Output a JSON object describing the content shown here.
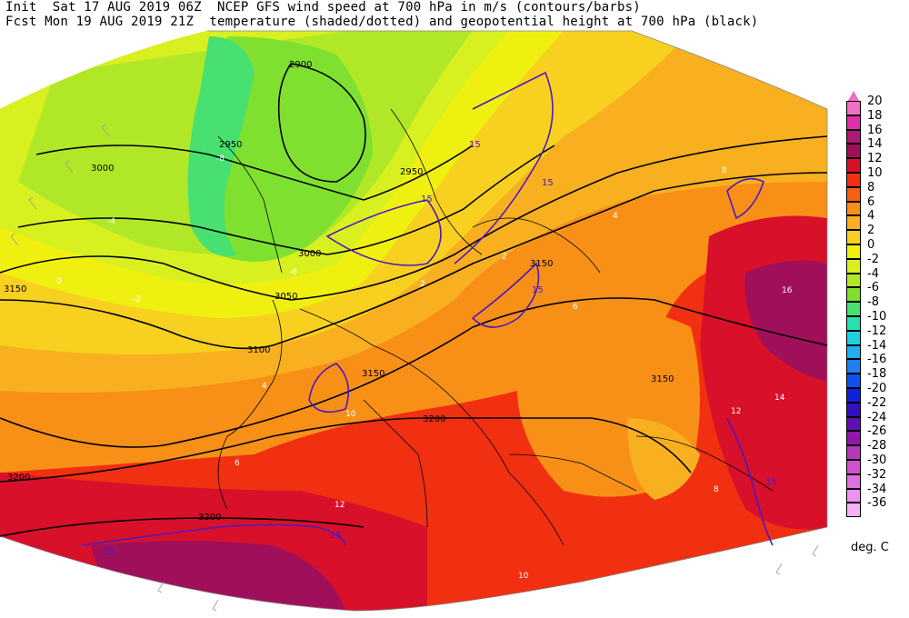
{
  "header": {
    "line1": "Init  Sat 17 AUG 2019 06Z  NCEP GFS wind speed at 700 hPa in m/s (contours/barbs)",
    "line2": "Fcst Mon 19 AUG 2019 21Z  temperature (shaded/dotted) and geopotential height at 700 hPa (black)"
  },
  "colorbar": {
    "levels": [
      {
        "label": "20",
        "color": "#f070c8"
      },
      {
        "label": "18",
        "color": "#e030a8"
      },
      {
        "label": "16",
        "color": "#b01878"
      },
      {
        "label": "14",
        "color": "#a0105a"
      },
      {
        "label": "12",
        "color": "#d8102a"
      },
      {
        "label": "10",
        "color": "#f03010"
      },
      {
        "label": "8",
        "color": "#f86010"
      },
      {
        "label": "6",
        "color": "#f89018"
      },
      {
        "label": "4",
        "color": "#f8b020"
      },
      {
        "label": "2",
        "color": "#f8d020"
      },
      {
        "label": "0",
        "color": "#f0f010"
      },
      {
        "label": "-2",
        "color": "#d8f020"
      },
      {
        "label": "-4",
        "color": "#b0e828"
      },
      {
        "label": "-6",
        "color": "#80e030"
      },
      {
        "label": "-8",
        "color": "#48e070"
      },
      {
        "label": "-10",
        "color": "#28e0b0"
      },
      {
        "label": "-12",
        "color": "#20d0e0"
      },
      {
        "label": "-14",
        "color": "#20b0f0"
      },
      {
        "label": "-16",
        "color": "#2080f0"
      },
      {
        "label": "-18",
        "color": "#1050f0"
      },
      {
        "label": "-20",
        "color": "#1020d8"
      },
      {
        "label": "-22",
        "color": "#3010c0"
      },
      {
        "label": "-24",
        "color": "#6010b0"
      },
      {
        "label": "-26",
        "color": "#9018a8"
      },
      {
        "label": "-28",
        "color": "#b838b8"
      },
      {
        "label": "-30",
        "color": "#d050d0"
      },
      {
        "label": "-32",
        "color": "#e070e0"
      },
      {
        "label": "-34",
        "color": "#f090f0"
      },
      {
        "label": "-36",
        "color": "#f8b0f8"
      }
    ],
    "units": "deg. C"
  },
  "map_labels": {
    "height": [
      "2900",
      "2950",
      "2950",
      "3000",
      "3000",
      "3050",
      "3100",
      "3150",
      "3150",
      "3150",
      "3150",
      "3200",
      "3200",
      "3200"
    ],
    "wind": [
      "15",
      "15",
      "15",
      "15",
      "15",
      "15",
      "15"
    ],
    "temp": [
      "-8",
      "-4",
      "-2",
      "0",
      "2",
      "4",
      "6",
      "8",
      "10",
      "12",
      "14",
      "16",
      "12",
      "10",
      "8",
      "6",
      "4",
      "2",
      "-6"
    ]
  }
}
